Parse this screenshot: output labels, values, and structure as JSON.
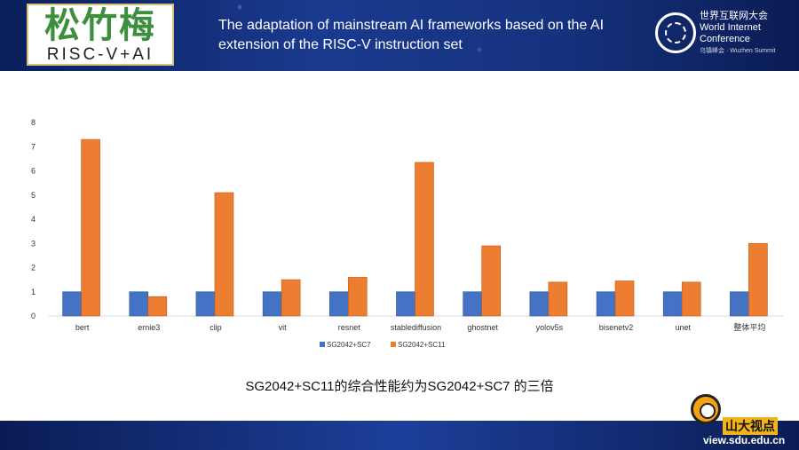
{
  "header": {
    "logo_cn": "松竹梅",
    "logo_en": "RISC-V+AI",
    "title": "The adaptation of mainstream AI frameworks based on the AI extension of the RISC-V instruction set",
    "wic_line1": "世界互联网大会",
    "wic_line2": "World Internet",
    "wic_line3": "Conference",
    "wic_line4": "乌镇峰会 · Wuzhen Summit"
  },
  "caption": "SG2042+SC11的综合性能约为SG2042+SC7 的三倍",
  "footer": {
    "brand": "山大视点",
    "url": "view.sdu.edu.cn"
  },
  "chart_data": {
    "type": "bar",
    "categories": [
      "bert",
      "ernie3",
      "clip",
      "vit",
      "resnet",
      "stablediffusion",
      "ghostnet",
      "yolov5s",
      "bisenetv2",
      "unet",
      "整体平均"
    ],
    "series": [
      {
        "name": "SG2042+SC7",
        "color": "#4472c4",
        "values": [
          1,
          1,
          1,
          1,
          1,
          1,
          1,
          1,
          1,
          1,
          1
        ]
      },
      {
        "name": "SG2042+SC11",
        "color": "#ed7d31",
        "values": [
          7.3,
          0.8,
          5.1,
          1.5,
          1.6,
          6.35,
          2.9,
          1.4,
          1.45,
          1.4,
          3.0
        ]
      }
    ],
    "ylim": [
      0,
      8
    ],
    "yticks": [
      "0",
      "1",
      "2",
      "3",
      "4",
      "5",
      "6",
      "7",
      "8"
    ],
    "grid": false,
    "legend": "bottom"
  }
}
